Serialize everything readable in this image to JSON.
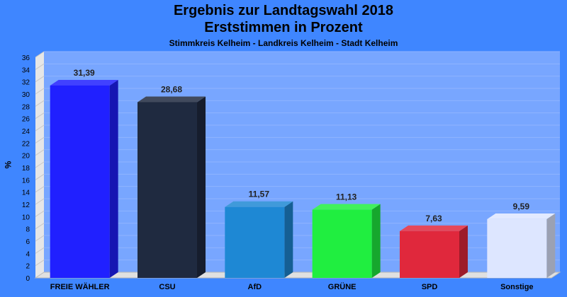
{
  "title": "Ergebnis zur Landtagswahl 2018",
  "subtitle": "Erststimmen in Prozent",
  "caption": "Stimmkreis Kelheim - Landkreis Kelheim - Stadt Kelheim",
  "chart_data": {
    "type": "bar",
    "title": "Ergebnis zur Landtagswahl 2018",
    "subtitle": "Erststimmen in Prozent",
    "ylabel": "%",
    "xlabel": "",
    "ylim": [
      0,
      36
    ],
    "ytick_step": 2,
    "grid": true,
    "legend": "none",
    "categories": [
      "FREIE WÄHLER",
      "CSU",
      "AfD",
      "GRÜNE",
      "SPD",
      "Sonstige"
    ],
    "values": [
      31.39,
      28.68,
      11.57,
      11.13,
      7.63,
      9.59
    ],
    "value_labels": [
      "31,39",
      "28,68",
      "11,57",
      "11,13",
      "7,63",
      "9,59"
    ],
    "colors": [
      "#2020ff",
      "#1f2a40",
      "#1e88d4",
      "#20ee40",
      "#e0283c",
      "#dde6ff"
    ]
  }
}
